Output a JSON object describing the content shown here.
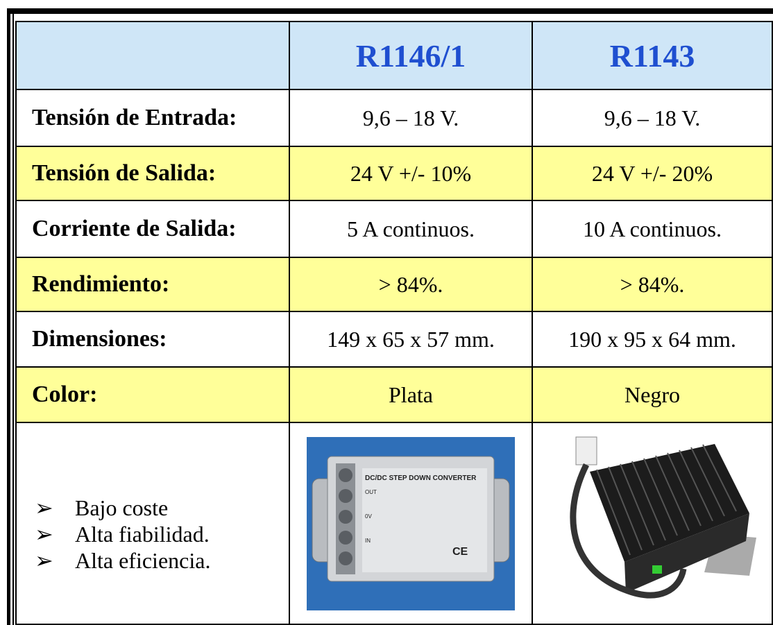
{
  "table": {
    "columns": [
      "R1146/1",
      "R1143"
    ],
    "rows": [
      [
        "Tensión de Entrada:",
        "9,6 – 18 V.",
        "9,6 – 18 V."
      ],
      [
        "Tensión de Salida:",
        "24 V +/- 10%",
        "24 V +/- 20%"
      ],
      [
        "Corriente de Salida:",
        "5 A continuos.",
        "10 A continuos."
      ],
      [
        "Rendimiento:",
        "> 84%.",
        "> 84%."
      ],
      [
        "Dimensiones:",
        "149 x 65 x 57 mm.",
        "190 x 95 x 64 mm."
      ],
      [
        "Color:",
        "Plata",
        "Negro"
      ]
    ],
    "features": [
      "Bajo coste",
      "Alta fiabilidad.",
      "Alta eficiencia."
    ],
    "product_image": {
      "title": "DC/DC STEP DOWN CONVERTER",
      "labels": [
        "OUT",
        "0V",
        "IN"
      ],
      "mark": "CE"
    }
  }
}
